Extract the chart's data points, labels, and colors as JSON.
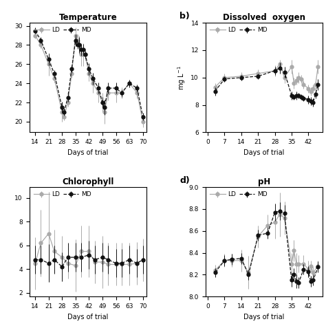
{
  "temp_days": [
    14,
    17,
    21,
    24,
    28,
    29,
    31,
    33,
    35,
    36,
    37,
    38,
    39,
    40,
    42,
    44,
    47,
    49,
    50,
    52,
    56,
    59,
    63,
    67,
    70
  ],
  "temp_LD": [
    29,
    28,
    26,
    24.5,
    21,
    20.5,
    22,
    25,
    29,
    28.5,
    28,
    27,
    27,
    27,
    25,
    24,
    23,
    22,
    21,
    23,
    23,
    23,
    24,
    23,
    20
  ],
  "temp_LD_err": [
    0.3,
    0.3,
    1.2,
    0.4,
    1.0,
    0.4,
    0.4,
    0.4,
    0.8,
    0.6,
    1.0,
    1.2,
    1.2,
    0.6,
    0.8,
    1.0,
    1.0,
    1.0,
    1.2,
    0.8,
    1.0,
    0.6,
    0.4,
    0.6,
    0.6
  ],
  "temp_MD": [
    29.5,
    28.5,
    26.5,
    25,
    21.5,
    21,
    22.5,
    25.5,
    28.5,
    28,
    28,
    27.5,
    27.5,
    27,
    25.5,
    24.5,
    23.5,
    22,
    21.5,
    23.5,
    23.5,
    23,
    24,
    23.5,
    20.5
  ],
  "temp_MD_err": [
    0.3,
    0.3,
    0.6,
    0.4,
    0.6,
    0.4,
    0.4,
    0.4,
    0.6,
    0.4,
    0.8,
    0.6,
    0.6,
    0.4,
    0.6,
    0.6,
    0.6,
    0.6,
    0.8,
    0.6,
    0.6,
    0.4,
    0.4,
    0.4,
    0.4
  ],
  "do_days": [
    3,
    7,
    14,
    21,
    28,
    30,
    32,
    35,
    36,
    37,
    38,
    39,
    40,
    42,
    43,
    44,
    45,
    46
  ],
  "do_LD": [
    9.3,
    10.0,
    10.1,
    10.3,
    10.5,
    11.0,
    10.0,
    10.8,
    9.6,
    9.8,
    10.0,
    9.9,
    9.5,
    9.2,
    9.0,
    9.2,
    9.5,
    10.8
  ],
  "do_LD_err": [
    0.3,
    0.3,
    0.3,
    0.3,
    0.4,
    0.3,
    0.4,
    0.5,
    0.4,
    0.3,
    0.4,
    0.3,
    0.3,
    0.3,
    0.3,
    0.3,
    0.4,
    0.5
  ],
  "do_MD": [
    9.0,
    9.9,
    10.0,
    10.1,
    10.5,
    10.7,
    10.4,
    8.7,
    8.6,
    8.7,
    8.7,
    8.6,
    8.5,
    8.4,
    8.3,
    8.2,
    8.8,
    9.5
  ],
  "do_MD_err": [
    0.3,
    0.2,
    0.2,
    0.2,
    0.3,
    0.4,
    0.4,
    0.3,
    0.2,
    0.3,
    0.2,
    0.2,
    0.2,
    0.3,
    0.3,
    0.3,
    0.3,
    0.4
  ],
  "chl_days": [
    14,
    17,
    21,
    24,
    28,
    31,
    35,
    38,
    42,
    45,
    49,
    52,
    56,
    59,
    63,
    67,
    70
  ],
  "chl_LD": [
    4.5,
    6.2,
    7.0,
    5.5,
    5.0,
    4.5,
    4.3,
    5.5,
    5.5,
    4.6,
    4.6,
    4.4,
    4.4,
    4.4,
    4.4,
    4.5,
    4.8
  ],
  "chl_LD_err": [
    2.2,
    2.8,
    3.5,
    1.8,
    1.8,
    1.3,
    2.2,
    2.2,
    2.2,
    1.8,
    2.2,
    1.8,
    1.8,
    1.8,
    1.8,
    1.8,
    1.8
  ],
  "chl_MD": [
    4.8,
    4.8,
    4.5,
    4.8,
    4.2,
    5.0,
    5.0,
    5.0,
    5.2,
    4.8,
    5.0,
    4.8,
    4.5,
    4.5,
    4.8,
    4.5,
    4.8
  ],
  "chl_MD_err": [
    1.2,
    1.2,
    1.6,
    1.2,
    1.2,
    1.2,
    1.2,
    1.2,
    1.2,
    1.2,
    1.2,
    1.2,
    1.2,
    1.2,
    1.2,
    1.2,
    1.2
  ],
  "ph_days": [
    3,
    7,
    10,
    14,
    17,
    21,
    25,
    28,
    30,
    32,
    35,
    36,
    37,
    38,
    40,
    42,
    43,
    44,
    46
  ],
  "ph_LD": [
    8.24,
    8.33,
    8.33,
    8.33,
    8.22,
    8.55,
    8.65,
    8.68,
    8.75,
    8.72,
    8.3,
    8.42,
    8.3,
    8.3,
    8.3,
    8.25,
    8.28,
    8.22,
    8.28
  ],
  "ph_LD_err": [
    0.05,
    0.06,
    0.06,
    0.1,
    0.15,
    0.1,
    0.1,
    0.15,
    0.2,
    0.15,
    0.1,
    0.1,
    0.1,
    0.08,
    0.08,
    0.08,
    0.05,
    0.05,
    0.05
  ],
  "ph_MD": [
    8.22,
    8.33,
    8.34,
    8.35,
    8.2,
    8.56,
    8.58,
    8.77,
    8.78,
    8.76,
    8.15,
    8.2,
    8.14,
    8.13,
    8.25,
    8.23,
    8.14,
    8.15,
    8.27
  ],
  "ph_MD_err": [
    0.04,
    0.05,
    0.05,
    0.05,
    0.05,
    0.05,
    0.05,
    0.08,
    0.08,
    0.08,
    0.06,
    0.06,
    0.06,
    0.05,
    0.05,
    0.05,
    0.05,
    0.05,
    0.05
  ],
  "color_LD": "#aaaaaa",
  "color_MD": "#111111",
  "bg_color": "#ffffff"
}
